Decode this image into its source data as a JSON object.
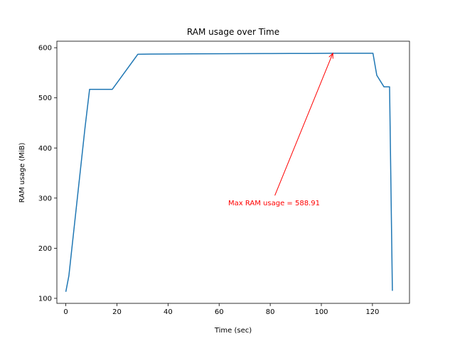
{
  "chart_data": {
    "type": "line",
    "title": "RAM usage over Time",
    "xlabel": "Time (sec)",
    "ylabel": "RAM usage (MiB)",
    "xlim": [
      -3.5,
      134.5
    ],
    "ylim": [
      90,
      613
    ],
    "xticks": [
      0,
      20,
      40,
      60,
      80,
      100,
      120
    ],
    "yticks": [
      100,
      200,
      300,
      400,
      500,
      600
    ],
    "grid": false,
    "series": [
      {
        "color": "#1f77b4",
        "x": [
          0,
          1.2,
          7.5,
          9.3,
          18.2,
          28.2,
          33,
          40,
          50,
          60,
          68,
          78,
          88,
          95,
          104.5,
          110,
          120.2,
          121.7,
          124.5,
          126.2,
          126.7,
          127.8
        ],
        "y": [
          113,
          145,
          440,
          517,
          517,
          587,
          587.3,
          587.5,
          587.8,
          588,
          588.2,
          588.3,
          588.5,
          588.6,
          588.91,
          588.9,
          588.9,
          545,
          522,
          522,
          522,
          115
        ]
      }
    ],
    "annotation": {
      "text": "Max RAM usage = 588.91",
      "color": "#ff0000",
      "point": [
        104.5,
        588.91
      ],
      "text_pos": [
        81.5,
        291
      ]
    }
  }
}
